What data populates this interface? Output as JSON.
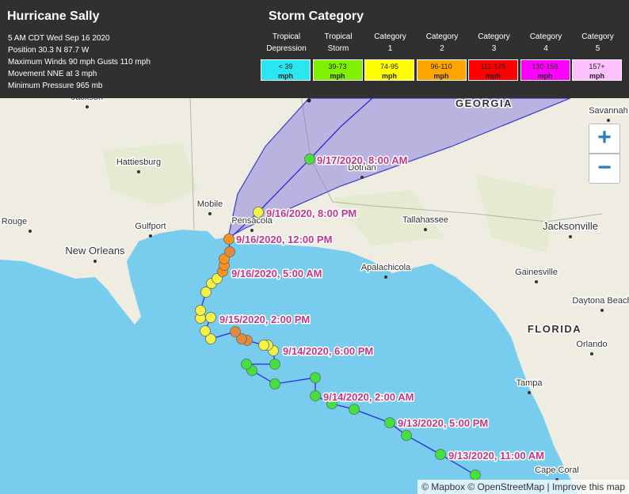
{
  "header": {
    "title": "Hurricane Sally",
    "lines": [
      "5 AM CDT Wed Sep 16 2020",
      "Position 30.3 N 87.7 W",
      "Maximum Winds 90 mph Gusts 110 mph",
      "Movement NNE at 3 mph",
      "Minimum Pressure 965 mb"
    ]
  },
  "legend": {
    "title": "Storm Category",
    "items": [
      {
        "name": [
          "Tropical",
          "Depression"
        ],
        "range": "< 39",
        "unit": "mph",
        "color": "#29e6f0"
      },
      {
        "name": [
          "Tropical",
          "Storm"
        ],
        "range": "39-73",
        "unit": "mph",
        "color": "#7ef000"
      },
      {
        "name": [
          "Category",
          "1"
        ],
        "range": "74-95",
        "unit": "mph",
        "color": "#ffff00"
      },
      {
        "name": [
          "Category",
          "2"
        ],
        "range": "96-110",
        "unit": "mph",
        "color": "#ffa500"
      },
      {
        "name": [
          "Category",
          "3"
        ],
        "range": "111-129",
        "unit": "mph",
        "color": "#ff0000"
      },
      {
        "name": [
          "Category",
          "4"
        ],
        "range": "130-156",
        "unit": "mph",
        "color": "#ff00ff"
      },
      {
        "name": [
          "Category",
          "5"
        ],
        "range": "157+",
        "unit": "mph",
        "color": "#ffc0ff"
      }
    ]
  },
  "map": {
    "places": [
      "Jackson",
      "Hattiesburg",
      "Mobile",
      "Gulfport",
      "Rouge",
      "New Orleans",
      "Pensacola",
      "Dothan",
      "Tallahassee",
      "Apalachicola",
      "Jacksonville",
      "Gainesville",
      "Daytona Beach",
      "Orlando",
      "Tampa",
      "Cape Coral",
      "Savannah"
    ],
    "states": [
      "GEORGIA",
      "FLORIDA"
    ],
    "track_labels": [
      "9/17/2020, 8:00 AM",
      "9/16/2020, 8:00 PM",
      "9/16/2020, 12:00 PM",
      "9/16/2020, 5:00 AM",
      "9/15/2020, 2:00 PM",
      "9/14/2020, 6:00 PM",
      "9/14/2020, 2:00 AM",
      "9/13/2020, 5:00 PM",
      "9/13/2020, 11:00 AM"
    ],
    "zoom_in": "+",
    "zoom_out": "−",
    "attribution": "© Mapbox © OpenStreetMap | Improve this map"
  }
}
